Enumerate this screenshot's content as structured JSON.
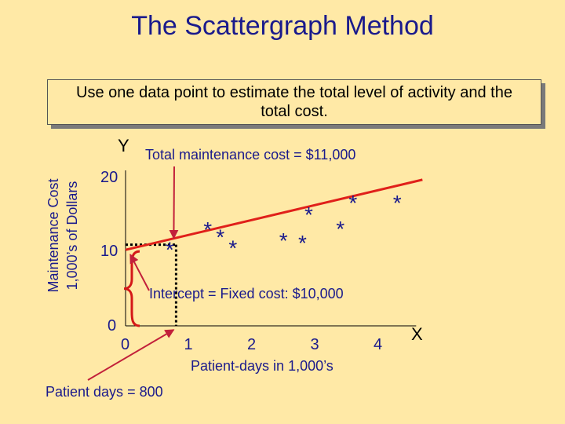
{
  "slide": {
    "title": "The Scattergraph Method",
    "callout": "Use one data point to estimate the total level of activity and the total cost."
  },
  "chart_data": {
    "type": "scatter",
    "xlabel": "Patient-days in 1,000’s",
    "ylabel_line1": "Maintenance Cost",
    "ylabel_line2": "1,000’s of Dollars",
    "x_axis_letter": "X",
    "y_axis_letter": "Y",
    "x_ticks": [
      0,
      1,
      2,
      3,
      4
    ],
    "y_ticks": [
      0,
      10,
      20
    ],
    "xlim": [
      0,
      4.6
    ],
    "ylim": [
      0,
      20
    ],
    "marker": "*",
    "points": [
      {
        "x": 0.7,
        "y": 10.6
      },
      {
        "x": 1.3,
        "y": 13.3
      },
      {
        "x": 1.5,
        "y": 12.3
      },
      {
        "x": 1.7,
        "y": 10.8
      },
      {
        "x": 2.5,
        "y": 11.8
      },
      {
        "x": 2.8,
        "y": 11.5
      },
      {
        "x": 2.9,
        "y": 15.3
      },
      {
        "x": 3.4,
        "y": 13.4
      },
      {
        "x": 3.6,
        "y": 16.9
      },
      {
        "x": 4.3,
        "y": 16.9
      }
    ],
    "fit_line": {
      "x": [
        0,
        4.7
      ],
      "y": [
        10.3,
        19.8
      ],
      "color": "#E0201A"
    },
    "selected_point": {
      "x": 0.8,
      "y": 11.0
    },
    "annotations": {
      "total_cost": "Total maintenance cost = $11,000",
      "intercept": "Intercept = Fixed cost: $10,000",
      "patient_days": "Patient days = 800"
    },
    "colors": {
      "text": "#1A1A8C",
      "line": "#E0201A",
      "arrow": "#C2203A",
      "brace": "#D41818",
      "guide": "#000000"
    }
  }
}
